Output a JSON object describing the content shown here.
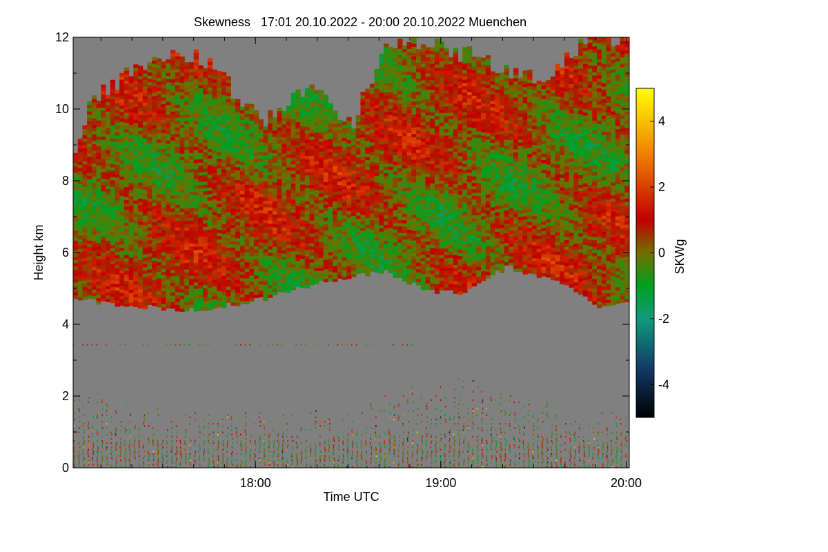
{
  "chart_data": {
    "type": "heatmap",
    "title": "Skewness   17:01 20.10.2022 - 20:00 20.10.2022 Muenchen",
    "xlabel": "Time UTC",
    "ylabel": "Height km",
    "colorbar_label": "SKWg",
    "x_range_utc": [
      "17:01",
      "20:00"
    ],
    "x_ticks": [
      "18:00",
      "19:00",
      "20:00"
    ],
    "x_tick_minutes_from_start": [
      59,
      119,
      179
    ],
    "x_range_minutes": [
      0,
      180
    ],
    "ylim": [
      0,
      12
    ],
    "y_ticks": [
      0,
      2,
      4,
      6,
      8,
      10,
      12
    ],
    "colorbar_range": [
      -5,
      5
    ],
    "colorbar_ticks": [
      -4,
      -2,
      0,
      2,
      4
    ],
    "no_data_color": "#808080",
    "colormap": [
      {
        "v": -5,
        "c": "#000000"
      },
      {
        "v": -3.5,
        "c": "#123a6a"
      },
      {
        "v": -2,
        "c": "#109a7a"
      },
      {
        "v": -1,
        "c": "#00a020"
      },
      {
        "v": 0,
        "c": "#707000"
      },
      {
        "v": 1,
        "c": "#c00000"
      },
      {
        "v": 3,
        "c": "#f08000"
      },
      {
        "v": 5,
        "c": "#ffff00"
      }
    ],
    "cloud_layer": {
      "base_km_at_minutes": [
        [
          0,
          4.7
        ],
        [
          20,
          4.5
        ],
        [
          40,
          4.4
        ],
        [
          60,
          4.7
        ],
        [
          80,
          5.2
        ],
        [
          100,
          5.5
        ],
        [
          115,
          4.9
        ],
        [
          125,
          4.9
        ],
        [
          140,
          5.6
        ],
        [
          160,
          5.1
        ],
        [
          170,
          4.5
        ],
        [
          180,
          4.7
        ]
      ],
      "top_km_at_minutes": [
        [
          0,
          8.8
        ],
        [
          5,
          10.1
        ],
        [
          20,
          11.1
        ],
        [
          30,
          11.6
        ],
        [
          45,
          11.2
        ],
        [
          60,
          9.5
        ],
        [
          75,
          10.6
        ],
        [
          90,
          9.5
        ],
        [
          100,
          11.7
        ],
        [
          115,
          11.8
        ],
        [
          135,
          11.2
        ],
        [
          150,
          10.8
        ],
        [
          165,
          11.8
        ],
        [
          180,
          12.0
        ]
      ],
      "typical_skewness": 0.3,
      "spread": 1.6
    },
    "boundary_layer": {
      "top_km": 1.7,
      "peak_top_km": 2.6,
      "typical_skewness": 0.0,
      "spread": 3.5
    },
    "stray_layer_km": 3.45
  }
}
